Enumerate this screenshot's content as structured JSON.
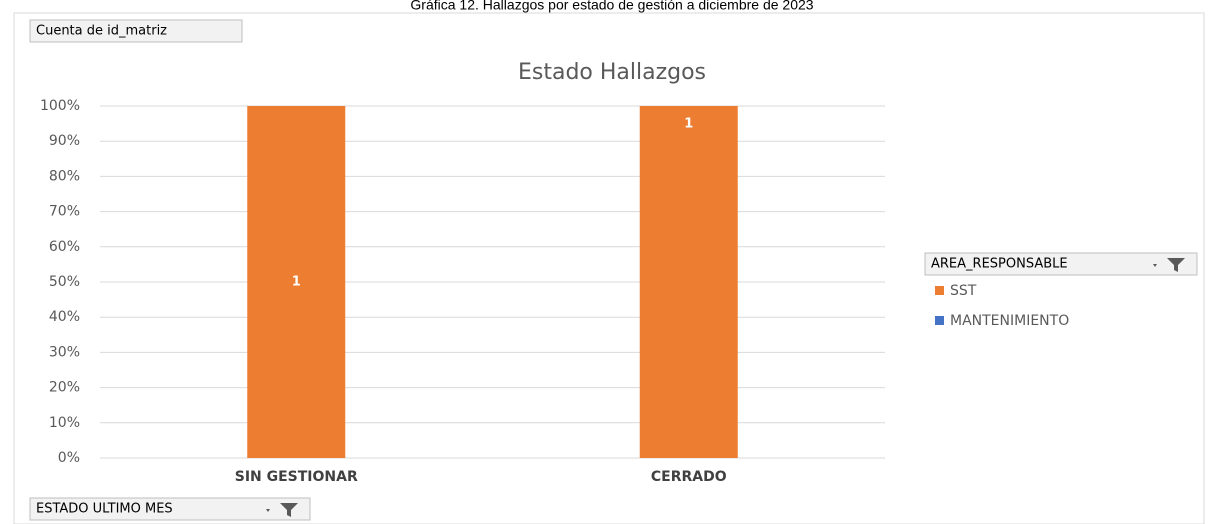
{
  "caption": "Gráfica 12. Hallazgos por estado de gestión a diciembre de 2023",
  "buttons": {
    "value_field": "Cuenta de id_matriz",
    "axis_field": "ESTADO ULTIMO MES",
    "legend_field": "AREA_RESPONSABLE"
  },
  "chart_data": {
    "type": "bar",
    "stacked": "percent",
    "title": "Estado Hallazgos",
    "categories": [
      "SIN GESTIONAR",
      "CERRADO"
    ],
    "series": [
      {
        "name": "SST",
        "color": "#ed7d31",
        "values": [
          1,
          1
        ]
      },
      {
        "name": "MANTENIMIENTO",
        "color": "#4472c4",
        "values": [
          null,
          null
        ]
      }
    ],
    "ylim": [
      0,
      100
    ],
    "yticks": [
      {
        "value": 0,
        "label": "0%"
      },
      {
        "value": 10,
        "label": "10%"
      },
      {
        "value": 20,
        "label": "20%"
      },
      {
        "value": 30,
        "label": "30%"
      },
      {
        "value": 40,
        "label": "40%"
      },
      {
        "value": 50,
        "label": "50%"
      },
      {
        "value": 60,
        "label": "60%"
      },
      {
        "value": 70,
        "label": "70%"
      },
      {
        "value": 80,
        "label": "80%"
      },
      {
        "value": 90,
        "label": "90%"
      },
      {
        "value": 100,
        "label": "100%"
      }
    ],
    "grid": true,
    "legend": "right"
  }
}
